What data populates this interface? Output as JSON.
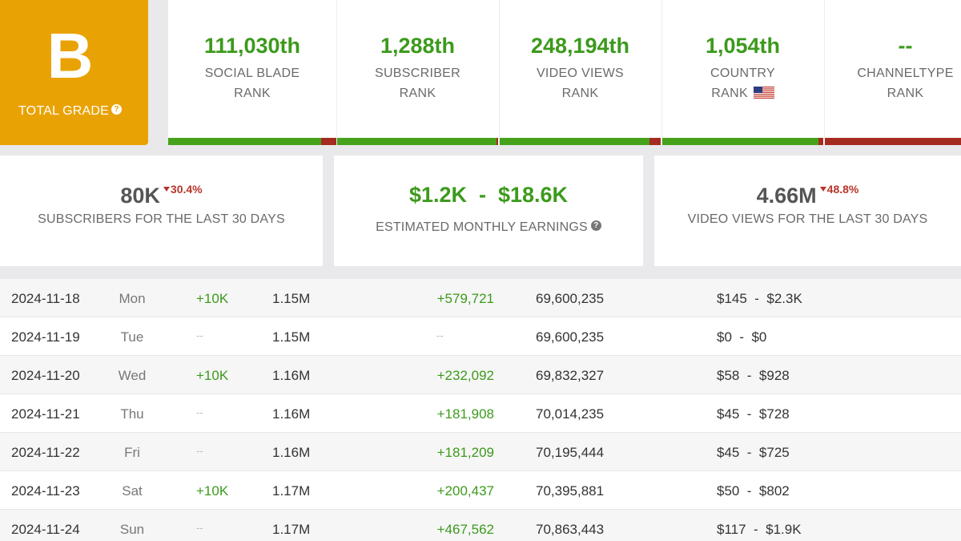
{
  "grade": {
    "letter": "B",
    "label": "TOTAL GRADE",
    "help": "?"
  },
  "ranks": [
    {
      "value": "111,030th",
      "line1": "SOCIAL BLADE",
      "line2": "RANK",
      "bar_percent": 91
    },
    {
      "value": "1,288th",
      "line1": "SUBSCRIBER",
      "line2": "RANK",
      "bar_percent": 99
    },
    {
      "value": "248,194th",
      "line1": "VIDEO VIEWS",
      "line2": "RANK",
      "bar_percent": 93
    },
    {
      "value": "1,054th",
      "line1": "COUNTRY",
      "line2": "RANK",
      "flag": "us-flag-icon",
      "bar_percent": 97
    },
    {
      "value": "--",
      "line1": "CHANNELTYPE",
      "line2": "RANK",
      "bar_percent": 0
    }
  ],
  "stats": [
    {
      "value": "80K",
      "change": "30.4%",
      "label": "SUBSCRIBERS FOR THE LAST 30 DAYS"
    },
    {
      "value": "$1.2K  -  $18.6K",
      "label": "ESTIMATED MONTHLY EARNINGS",
      "help": "?"
    },
    {
      "value": "4.66M",
      "change": "48.8%",
      "label": "VIDEO VIEWS FOR THE LAST 30 DAYS"
    }
  ],
  "rows": [
    {
      "date": "2024-11-18",
      "day": "Mon",
      "subs_change": "+10K",
      "subs": "1.15M",
      "views_change": "+579,721",
      "views": "69,600,235",
      "earnings": "$145  -  $2.3K"
    },
    {
      "date": "2024-11-19",
      "day": "Tue",
      "subs_change": "--",
      "subs": "1.15M",
      "views_change": "--",
      "views": "69,600,235",
      "earnings": "$0  -  $0"
    },
    {
      "date": "2024-11-20",
      "day": "Wed",
      "subs_change": "+10K",
      "subs": "1.16M",
      "views_change": "+232,092",
      "views": "69,832,327",
      "earnings": "$58  -  $928"
    },
    {
      "date": "2024-11-21",
      "day": "Thu",
      "subs_change": "--",
      "subs": "1.16M",
      "views_change": "+181,908",
      "views": "70,014,235",
      "earnings": "$45  -  $728"
    },
    {
      "date": "2024-11-22",
      "day": "Fri",
      "subs_change": "--",
      "subs": "1.16M",
      "views_change": "+181,209",
      "views": "70,195,444",
      "earnings": "$45  -  $725"
    },
    {
      "date": "2024-11-23",
      "day": "Sat",
      "subs_change": "+10K",
      "subs": "1.17M",
      "views_change": "+200,437",
      "views": "70,395,881",
      "earnings": "$50  -  $802"
    },
    {
      "date": "2024-11-24",
      "day": "Sun",
      "subs_change": "--",
      "subs": "1.17M",
      "views_change": "+467,562",
      "views": "70,863,443",
      "earnings": "$117  -  $1.9K"
    }
  ],
  "colors": {
    "grade_bg": "#e9a203",
    "positive": "#3c9a1c",
    "negative": "#b8352a",
    "bar_red": "#a52a20"
  }
}
